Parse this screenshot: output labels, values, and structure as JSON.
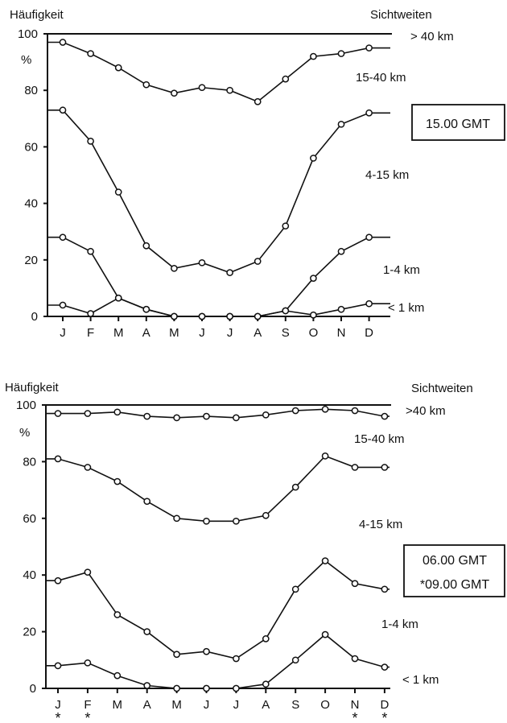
{
  "chart_data": [
    {
      "type": "line",
      "ylabel": "Häufigkeit",
      "yunit": "%",
      "band_header": "Sichtweiten",
      "time_label": "15.00 GMT",
      "time_label_2": "",
      "categories": [
        "J",
        "F",
        "M",
        "A",
        "M",
        "J",
        "J",
        "A",
        "S",
        "O",
        "N",
        "D"
      ],
      "asterisk_months": [],
      "ylim": [
        0,
        100
      ],
      "yticks": [
        "0",
        "20",
        "40",
        "60",
        "80",
        "100"
      ],
      "band_labels": [
        "> 40 km",
        "15-40 km",
        "4-15 km",
        "1-4 km",
        "< 1 km"
      ],
      "series": [
        {
          "name": "< 1 km",
          "values": [
            4,
            1,
            6.5,
            2.5,
            0,
            0,
            0,
            0,
            2,
            0.5,
            2.5,
            4.5
          ]
        },
        {
          "name": "1-4 km",
          "values": [
            28,
            23,
            6.5,
            2.5,
            0,
            0,
            0,
            0,
            2,
            13.5,
            23,
            28
          ]
        },
        {
          "name": "4-15 km",
          "values": [
            73,
            62,
            44,
            25,
            17,
            19,
            15.5,
            19.5,
            32,
            56,
            68,
            72
          ]
        },
        {
          "name": "15-40 km",
          "values": [
            97,
            93,
            88,
            82,
            79,
            81,
            80,
            76,
            84,
            92,
            93,
            95
          ]
        }
      ]
    },
    {
      "type": "line",
      "ylabel": "Häufigkeit",
      "yunit": "%",
      "band_header": "Sichtweiten",
      "time_label": "06.00 GMT",
      "time_label_2": "*09.00 GMT",
      "categories": [
        "J",
        "F",
        "M",
        "A",
        "M",
        "J",
        "J",
        "A",
        "S",
        "O",
        "N",
        "D"
      ],
      "asterisk_months": [
        0,
        1,
        10,
        11
      ],
      "ylim": [
        0,
        100
      ],
      "yticks": [
        "0",
        "20",
        "40",
        "60",
        "80",
        "100"
      ],
      "band_labels": [
        ">40 km",
        "15-40 km",
        "4-15 km",
        "1-4 km",
        "< 1 km"
      ],
      "series": [
        {
          "name": "< 1 km",
          "values": [
            8,
            9,
            4.5,
            1,
            0,
            0,
            0,
            1.5,
            10,
            19,
            10.5,
            7.5
          ]
        },
        {
          "name": "1-4 km",
          "values": [
            38,
            41,
            26,
            20,
            12,
            13,
            10.5,
            17.5,
            35,
            45,
            37,
            35
          ]
        },
        {
          "name": "4-15 km",
          "values": [
            81,
            78,
            73,
            66,
            60,
            59,
            59,
            61,
            71,
            82,
            78,
            78
          ]
        },
        {
          "name": "15-40 km",
          "values": [
            97,
            97,
            97.5,
            96,
            95.5,
            96,
            95.5,
            96.5,
            98,
            98.5,
            98,
            96
          ]
        }
      ]
    }
  ]
}
